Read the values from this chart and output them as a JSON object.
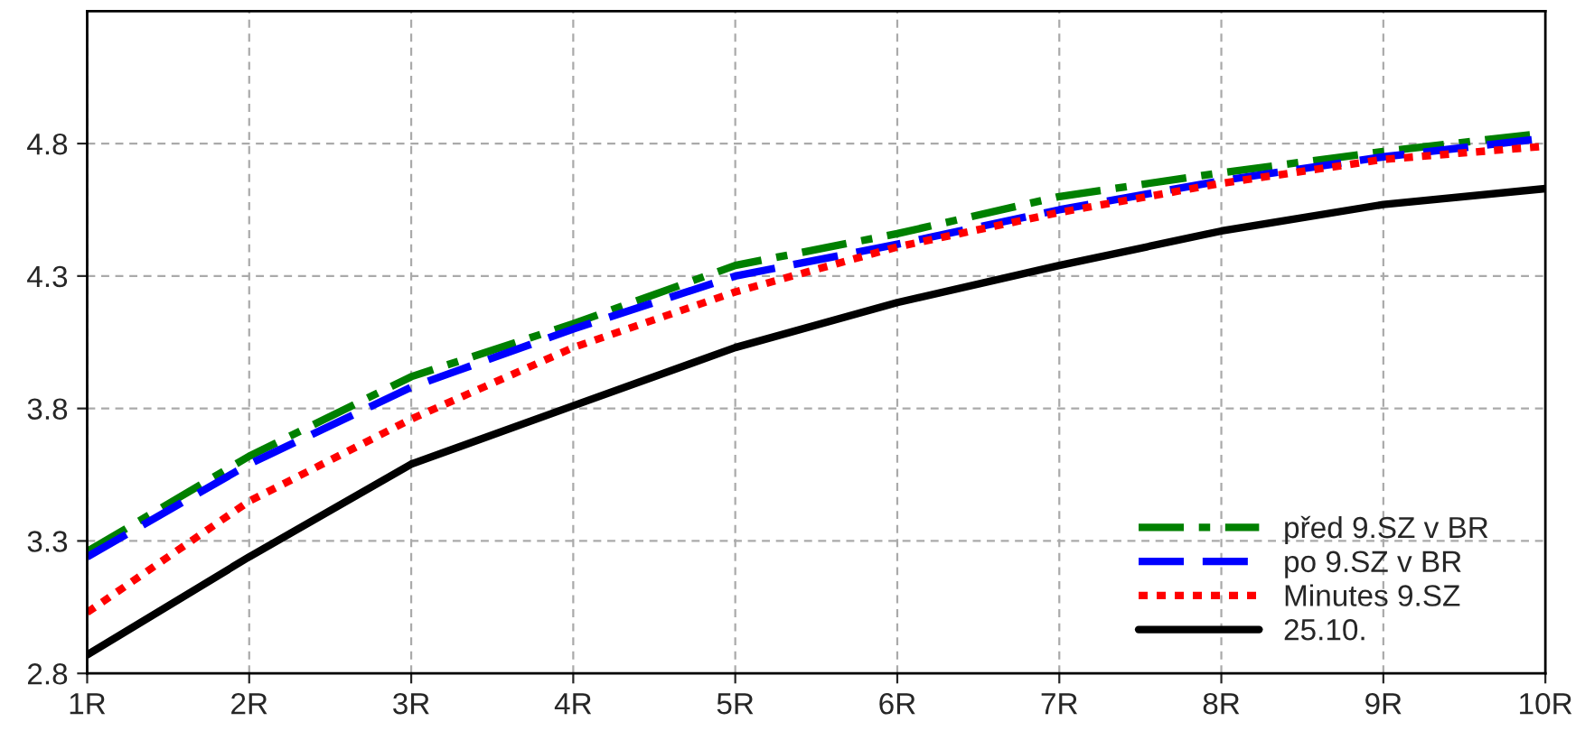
{
  "chart_data": {
    "type": "line",
    "categories": [
      "1R",
      "2R",
      "3R",
      "4R",
      "5R",
      "6R",
      "7R",
      "8R",
      "9R",
      "10R"
    ],
    "ylim": [
      2.8,
      5.3
    ],
    "yticks": [
      2.8,
      3.3,
      3.8,
      4.3,
      4.8
    ],
    "grid": true,
    "legend": "bottom right",
    "marker": "none",
    "series": [
      {
        "name": "před 9.SZ v BR",
        "color": "#008000",
        "line_style": "dashdot",
        "values": [
          3.26,
          3.62,
          3.92,
          4.12,
          4.34,
          4.46,
          4.6,
          4.69,
          4.77,
          4.84
        ]
      },
      {
        "name": "po 9.SZ v BR",
        "color": "#0000ff",
        "line_style": "dashed",
        "values": [
          3.24,
          3.59,
          3.88,
          4.1,
          4.3,
          4.42,
          4.55,
          4.66,
          4.75,
          4.82
        ]
      },
      {
        "name": "Minutes 9.SZ",
        "color": "#ff0000",
        "line_style": "dotted",
        "values": [
          3.03,
          3.45,
          3.76,
          4.03,
          4.24,
          4.41,
          4.54,
          4.65,
          4.74,
          4.79
        ]
      },
      {
        "name": "25.10.",
        "color": "#000000",
        "line_style": "solid",
        "values": [
          2.87,
          3.24,
          3.59,
          3.81,
          4.03,
          4.2,
          4.34,
          4.47,
          4.57,
          4.63
        ]
      }
    ]
  }
}
